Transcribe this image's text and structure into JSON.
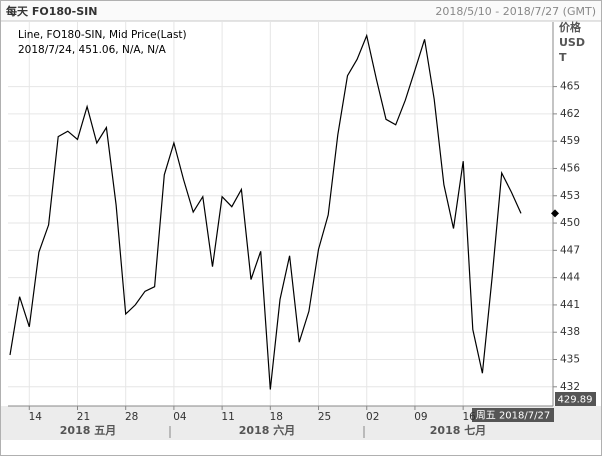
{
  "chart_data": {
    "type": "line",
    "title": "每天 FO180-SIN",
    "date_range": "2018/5/10 - 2018/7/27 (GMT)",
    "legend_title": "Line, FO180-SIN, Mid Price(Last)",
    "legend_extra": [
      "N/A",
      "N/A"
    ],
    "y_label": [
      "价格",
      "USD",
      "T"
    ],
    "cursor_label": "周五 2018/7/27",
    "month_labels": [
      "2018 五月",
      "2018 六月",
      "2018 七月"
    ],
    "categories": [
      "2018/5/10",
      "2018/5/11",
      "2018/5/14",
      "2018/5/15",
      "2018/5/16",
      "2018/5/17",
      "2018/5/18",
      "2018/5/21",
      "2018/5/22",
      "2018/5/23",
      "2018/5/24",
      "2018/5/25",
      "2018/5/28",
      "2018/5/29",
      "2018/5/30",
      "2018/5/31",
      "2018/6/1",
      "2018/6/4",
      "2018/6/5",
      "2018/6/6",
      "2018/6/7",
      "2018/6/8",
      "2018/6/11",
      "2018/6/12",
      "2018/6/13",
      "2018/6/14",
      "2018/6/15",
      "2018/6/18",
      "2018/6/19",
      "2018/6/20",
      "2018/6/21",
      "2018/6/22",
      "2018/6/25",
      "2018/6/26",
      "2018/6/27",
      "2018/6/28",
      "2018/6/29",
      "2018/7/2",
      "2018/7/3",
      "2018/7/4",
      "2018/7/5",
      "2018/7/6",
      "2018/7/9",
      "2018/7/10",
      "2018/7/11",
      "2018/7/12",
      "2018/7/13",
      "2018/7/16",
      "2018/7/17",
      "2018/7/18",
      "2018/7/19",
      "2018/7/20",
      "2018/7/23",
      "2018/7/24"
    ],
    "series": [
      {
        "name": "FO180-SIN",
        "color": "#000000",
        "values": [
          435.5,
          441.9,
          438.6,
          446.8,
          449.8,
          459.5,
          460.1,
          459.2,
          462.8,
          458.8,
          460.5,
          452.0,
          440.0,
          441.0,
          442.5,
          443.0,
          455.3,
          458.8,
          454.8,
          451.2,
          452.9,
          445.2,
          452.9,
          451.8,
          453.7,
          443.8,
          446.9,
          431.7,
          441.6,
          446.4,
          436.9,
          440.3,
          447.1,
          450.9,
          459.7,
          466.2,
          468.0,
          470.6,
          465.8,
          461.4,
          460.8,
          463.5,
          466.8,
          470.2,
          463.6,
          454.2,
          449.4,
          456.8,
          438.3,
          433.5,
          444.0,
          455.5,
          453.4,
          451.06
        ]
      }
    ],
    "xticks": [
      {
        "value": "2018/5/14",
        "label": "14"
      },
      {
        "value": "2018/5/21",
        "label": "21"
      },
      {
        "value": "2018/5/28",
        "label": "28"
      },
      {
        "value": "2018/6/4",
        "label": "04"
      },
      {
        "value": "2018/6/11",
        "label": "11"
      },
      {
        "value": "2018/6/18",
        "label": "18"
      },
      {
        "value": "2018/6/25",
        "label": "25"
      },
      {
        "value": "2018/7/2",
        "label": "02"
      },
      {
        "value": "2018/7/9",
        "label": "09"
      },
      {
        "value": "2018/7/16",
        "label": "16"
      }
    ],
    "ylim": [
      429.89,
      472.1
    ],
    "yticks": [
      432,
      435,
      438,
      441,
      444,
      447,
      450,
      453,
      456,
      459,
      462,
      465
    ],
    "grid": true
  }
}
